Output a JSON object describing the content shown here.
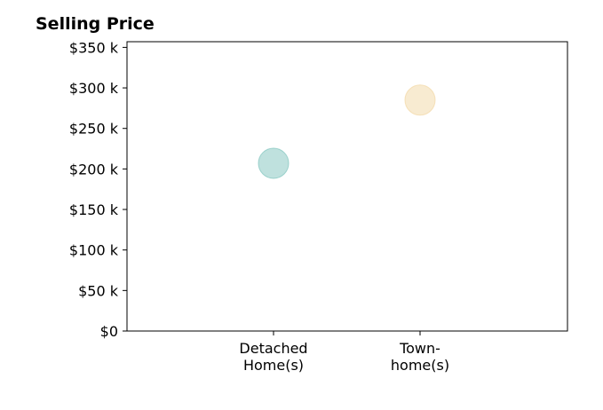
{
  "chart_data": {
    "type": "scatter",
    "title": "Selling Price",
    "xlabel": "",
    "ylabel": "",
    "categories": [
      {
        "line1": "Detached",
        "line2": "Home(s)"
      },
      {
        "line1": "Town-",
        "line2": "home(s)"
      }
    ],
    "points": [
      {
        "category_index": 0,
        "value": 207000,
        "color": "#7fc4be"
      },
      {
        "category_index": 1,
        "value": 285000,
        "color": "#f2d7a4"
      }
    ],
    "yticks": [
      {
        "value": 0,
        "label": "$0"
      },
      {
        "value": 50000,
        "label": "$50 k"
      },
      {
        "value": 100000,
        "label": "$100 k"
      },
      {
        "value": 150000,
        "label": "$150 k"
      },
      {
        "value": 200000,
        "label": "$200 k"
      },
      {
        "value": 250000,
        "label": "$250 k"
      },
      {
        "value": 300000,
        "label": "$300 k"
      },
      {
        "value": 350000,
        "label": "$350 k"
      }
    ],
    "ylim": [
      0,
      357000
    ],
    "grid": false,
    "legend": "none"
  }
}
